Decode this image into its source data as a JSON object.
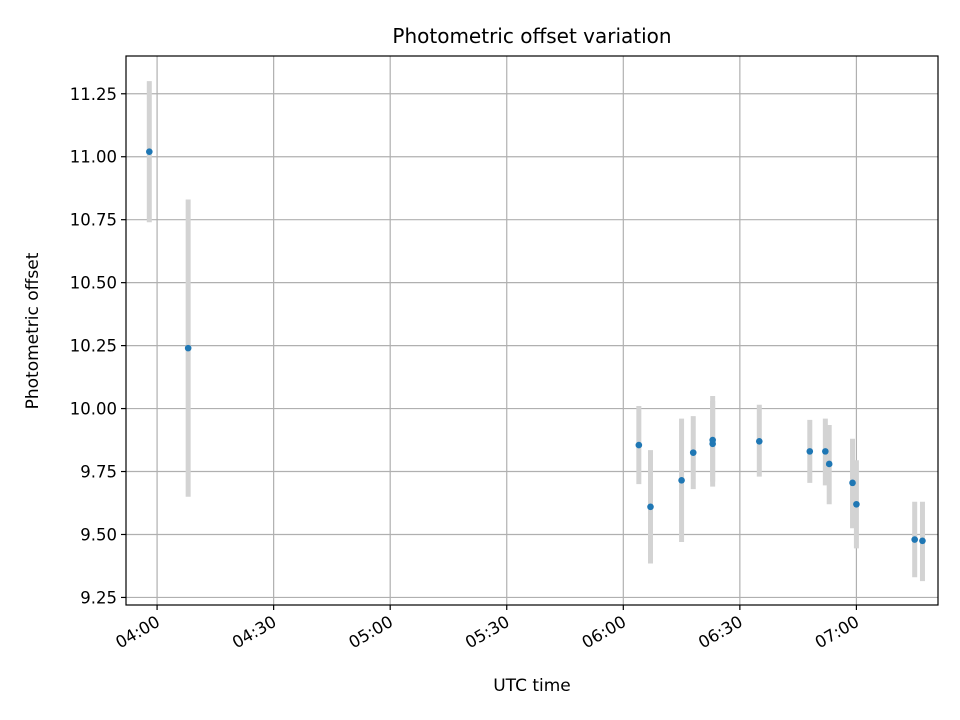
{
  "chart_data": {
    "type": "scatter",
    "title": "Photometric offset variation",
    "xlabel": "UTC time",
    "ylabel": "Photometric offset",
    "grid": true,
    "legend": "none",
    "x_axis": {
      "kind": "time",
      "range": [
        "03:52",
        "07:21"
      ],
      "ticks": [
        "04:00",
        "04:30",
        "05:00",
        "05:30",
        "06:00",
        "06:30",
        "07:00"
      ],
      "tick_label_rotation_deg": 30
    },
    "y_axis": {
      "range": [
        9.22,
        11.4
      ],
      "ticks": [
        9.25,
        9.5,
        9.75,
        10.0,
        10.25,
        10.5,
        10.75,
        11.0,
        11.25
      ],
      "tick_labels": [
        "9.25",
        "9.50",
        "9.75",
        "10.00",
        "10.25",
        "10.50",
        "10.75",
        "11.00",
        "11.25"
      ]
    },
    "colors": {
      "points": "#1f77b4",
      "errorbars": "#d3d3d3",
      "grid": "#b0b0b0"
    },
    "points": [
      {
        "t": "03:58",
        "y": 11.02,
        "yerr_low": 10.74,
        "yerr_high": 11.3
      },
      {
        "t": "04:08",
        "y": 10.24,
        "yerr_low": 9.65,
        "yerr_high": 10.83
      },
      {
        "t": "06:04",
        "y": 9.855,
        "yerr_low": 9.7,
        "yerr_high": 10.01
      },
      {
        "t": "06:07",
        "y": 9.61,
        "yerr_low": 9.385,
        "yerr_high": 9.835
      },
      {
        "t": "06:15",
        "y": 9.715,
        "yerr_low": 9.47,
        "yerr_high": 9.96
      },
      {
        "t": "06:18",
        "y": 9.825,
        "yerr_low": 9.68,
        "yerr_high": 9.97
      },
      {
        "t": "06:23",
        "y": 9.86,
        "yerr_low": 9.69,
        "yerr_high": 10.03
      },
      {
        "t": "06:23",
        "y": 9.875,
        "yerr_low": 9.71,
        "yerr_high": 10.05
      },
      {
        "t": "06:35",
        "y": 9.87,
        "yerr_low": 9.73,
        "yerr_high": 10.015
      },
      {
        "t": "06:48",
        "y": 9.83,
        "yerr_low": 9.705,
        "yerr_high": 9.955
      },
      {
        "t": "06:52",
        "y": 9.83,
        "yerr_low": 9.695,
        "yerr_high": 9.96
      },
      {
        "t": "06:53",
        "y": 9.78,
        "yerr_low": 9.62,
        "yerr_high": 9.935
      },
      {
        "t": "06:59",
        "y": 9.705,
        "yerr_low": 9.525,
        "yerr_high": 9.88
      },
      {
        "t": "07:00",
        "y": 9.62,
        "yerr_low": 9.445,
        "yerr_high": 9.795
      },
      {
        "t": "07:15",
        "y": 9.48,
        "yerr_low": 9.33,
        "yerr_high": 9.63
      },
      {
        "t": "07:17",
        "y": 9.475,
        "yerr_low": 9.315,
        "yerr_high": 9.63
      }
    ]
  }
}
